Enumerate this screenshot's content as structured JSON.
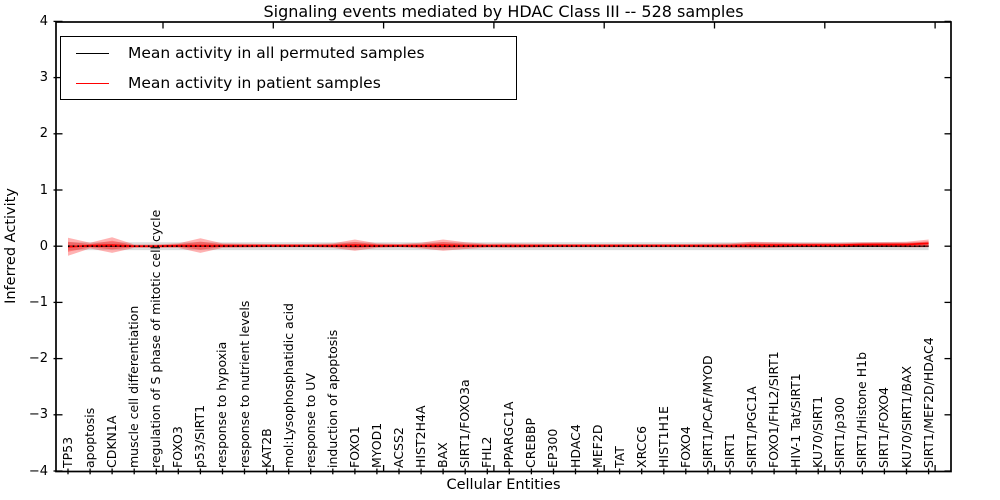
{
  "chart_data": {
    "type": "line",
    "title": "Signaling events mediated by HDAC Class III -- 528 samples",
    "xlabel": "Cellular Entities",
    "ylabel": "Inferred Activity",
    "ylim": [
      -4,
      4
    ],
    "yticks": [
      4,
      3,
      2,
      1,
      0,
      -1,
      -2,
      -3,
      -4
    ],
    "ytick_labels": [
      "4",
      "3",
      "2",
      "1",
      "0",
      "−1",
      "−2",
      "−3",
      "−4"
    ],
    "grid": false,
    "legend": {
      "position": "upper left",
      "entries": [
        {
          "label": "Mean activity in all permuted samples",
          "color": "#000000"
        },
        {
          "label": "Mean activity in patient samples",
          "color": "#ff0000"
        }
      ]
    },
    "zero_line": {
      "value": 0,
      "color": "#000000",
      "style": "dotted"
    },
    "categories": [
      "TP53",
      "apoptosis",
      "CDKN1A",
      "muscle cell differentiation",
      "regulation of S phase of mitotic cell cycle",
      "FOXO3",
      "p53/SIRT1",
      "response to hypoxia",
      "response to nutrient levels",
      "KAT2B",
      "mol:Lysophosphatidic acid",
      "response to UV",
      "induction of apoptosis",
      "FOXO1",
      "MYOD1",
      "ACSS2",
      "HIST2H4A",
      "BAX",
      "SIRT1/FOXO3a",
      "FHL2",
      "PPARGC1A",
      "CREBBP",
      "EP300",
      "HDAC4",
      "MEF2D",
      "TAT",
      "XRCC6",
      "HIST1H1E",
      "FOXO4",
      "SIRT1/PCAF/MYOD",
      "SIRT1",
      "SIRT1/PGC1A",
      "FOXO1/FHL2/SIRT1",
      "HIV-1 Tat/SIRT1",
      "KU70/SIRT1",
      "SIRT1/p300",
      "SIRT1/Histone H1b",
      "SIRT1/FOXO4",
      "KU70/SIRT1/BAX",
      "SIRT1/MEF2D/HDAC4"
    ],
    "series": [
      {
        "name": "Mean activity in all permuted samples",
        "color": "#000000",
        "style": "solid",
        "values": [
          0,
          0,
          0,
          0,
          0,
          0,
          0,
          0,
          0,
          0,
          0,
          0,
          0,
          0,
          0,
          0,
          0,
          0,
          0,
          0,
          0,
          0,
          0,
          0,
          0,
          0,
          0,
          0,
          0,
          0,
          0,
          0,
          0,
          0,
          0,
          0,
          0,
          0,
          0,
          0
        ]
      },
      {
        "name": "Mean activity in patient samples",
        "color": "#ff0000",
        "style": "solid",
        "values": [
          -0.01,
          0.01,
          0.02,
          0,
          0,
          0.01,
          0.01,
          0.01,
          0.01,
          0.01,
          0.01,
          0.01,
          0.01,
          0.02,
          0.01,
          0.01,
          0.01,
          0.02,
          0.01,
          0.01,
          0.01,
          0.01,
          0.01,
          0.01,
          0.01,
          0.01,
          0.01,
          0.01,
          0.01,
          0.01,
          0.01,
          0.02,
          0.02,
          0.02,
          0.02,
          0.02,
          0.03,
          0.03,
          0.03,
          0.05
        ]
      }
    ],
    "bands": [
      {
        "series": "Mean activity in all permuted samples",
        "color": "#000000",
        "opacity": 0.14,
        "half_widths": [
          0.07,
          0.07,
          0.07,
          0.07,
          0.07,
          0.07,
          0.07,
          0.07,
          0.07,
          0.07,
          0.07,
          0.07,
          0.07,
          0.07,
          0.07,
          0.07,
          0.07,
          0.07,
          0.07,
          0.07,
          0.07,
          0.07,
          0.07,
          0.07,
          0.07,
          0.07,
          0.07,
          0.07,
          0.07,
          0.07,
          0.07,
          0.07,
          0.07,
          0.07,
          0.07,
          0.07,
          0.07,
          0.07,
          0.07,
          0.07
        ]
      },
      {
        "series": "Mean activity in patient samples",
        "color": "#ff0000",
        "opacity": 0.3,
        "inner_scale": 0.55,
        "inner_opacity": 0.32,
        "half_widths": [
          0.16,
          0.05,
          0.14,
          0.03,
          0.03,
          0.04,
          0.13,
          0.04,
          0.035,
          0.03,
          0.03,
          0.03,
          0.04,
          0.1,
          0.04,
          0.03,
          0.05,
          0.1,
          0.06,
          0.035,
          0.04,
          0.035,
          0.03,
          0.03,
          0.03,
          0.03,
          0.03,
          0.03,
          0.03,
          0.035,
          0.04,
          0.06,
          0.05,
          0.04,
          0.04,
          0.04,
          0.04,
          0.045,
          0.05,
          0.07
        ]
      }
    ]
  }
}
